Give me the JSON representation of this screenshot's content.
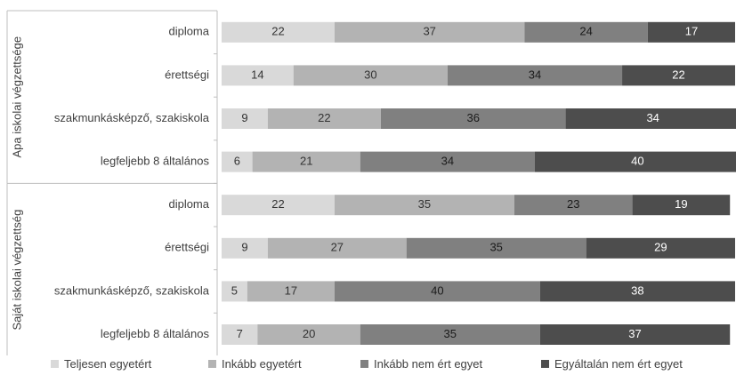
{
  "chart_data": {
    "type": "bar",
    "orientation": "horizontal",
    "stacked": true,
    "percent": true,
    "groups": [
      {
        "label": "Apa iskolai végzettsége",
        "categories": [
          "diploma",
          "érettségi",
          "szakmunkásképző, szakiskola",
          "legfeljebb 8 általános"
        ]
      },
      {
        "label": "Saját iskolai végzettség",
        "categories": [
          "diploma",
          "érettségi",
          "szakmunkásképző, szakiskola",
          "legfeljebb 8 általános"
        ]
      }
    ],
    "series": [
      {
        "name": "Teljesen egyetért",
        "color": "#d9d9d9",
        "label_color": "#333333",
        "values": [
          22,
          14,
          9,
          6,
          22,
          9,
          5,
          7
        ]
      },
      {
        "name": "Inkább egyetért",
        "color": "#b3b3b3",
        "label_color": "#333333",
        "values": [
          37,
          30,
          22,
          21,
          35,
          27,
          17,
          20
        ]
      },
      {
        "name": "Inkább nem ért egyet",
        "color": "#808080",
        "label_color": "#1a1a1a",
        "values": [
          24,
          34,
          36,
          34,
          23,
          35,
          40,
          35
        ]
      },
      {
        "name": "Egyáltalán nem ért egyet",
        "color": "#4d4d4d",
        "label_color": "#ffffff",
        "values": [
          17,
          22,
          34,
          40,
          19,
          29,
          38,
          37
        ]
      }
    ],
    "xlim": [
      0,
      100
    ],
    "legend_position": "bottom",
    "grid": false
  }
}
